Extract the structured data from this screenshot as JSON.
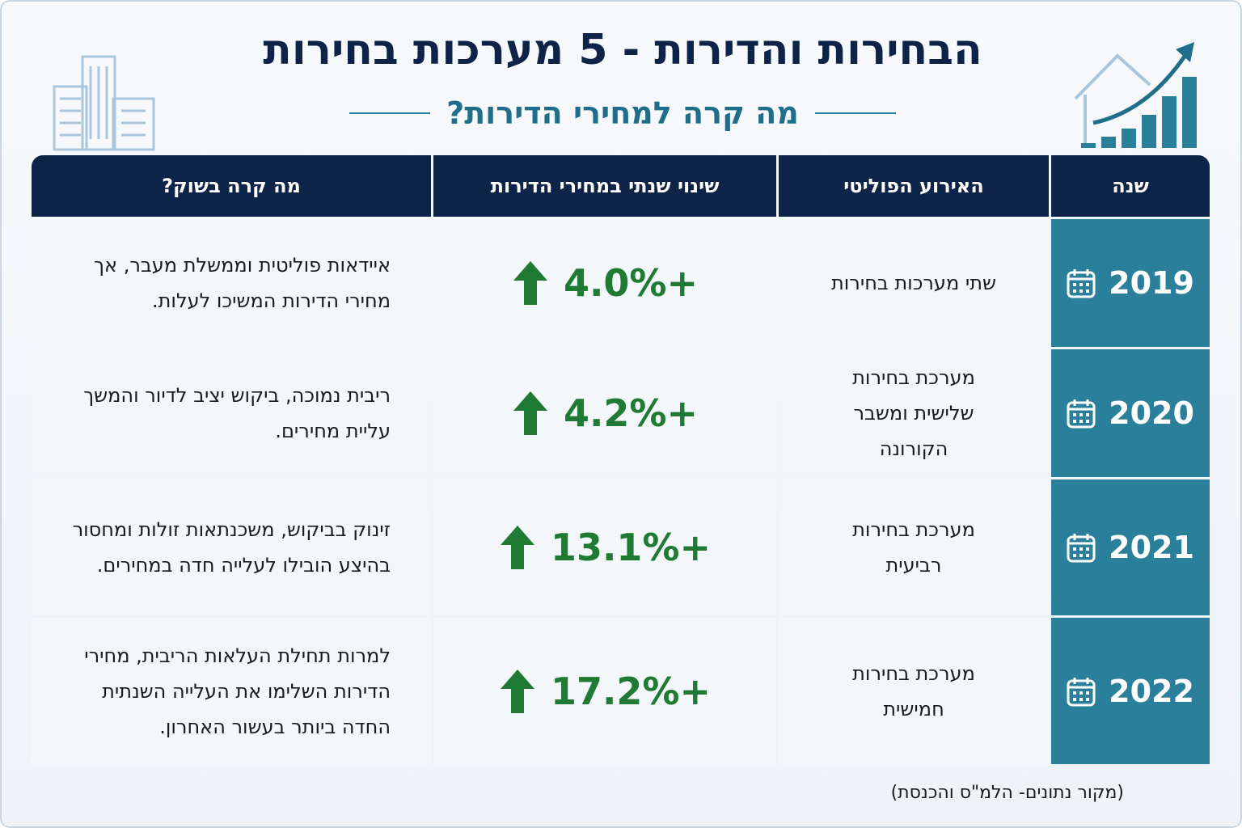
{
  "header": {
    "title": "הבחירות והדירות - 5 מערכות בחירות",
    "subtitle": "מה קרה למחירי הדירות?"
  },
  "table": {
    "columns": [
      "שנה",
      "האירוע הפוליטי",
      "שינוי שנתי במחירי הדירות",
      "מה קרה בשוק?"
    ],
    "rows": [
      [
        "2019",
        "שתי מערכות בחירות",
        "+4.0%",
        "איידאות פוליטית וממשלת מעבר, אך מחירי הדירות המשיכו לעלות."
      ],
      [
        "2020",
        "מערכת בחירות שלישית ומשבר הקורונה",
        "+4.2%",
        "ריבית נמוכה, ביקוש יציב לדיור והמשך עליית מחירים."
      ],
      [
        "2021",
        "מערכת בחירות רביעית",
        "+13.1%",
        "זינוק בביקוש, משכנתאות זולות ומחסור בהיצע הובילו לעלייה חדה במחירים."
      ],
      [
        "2022",
        "מערכת בחירות חמישית",
        "+17.2%",
        "למרות תחילת העלאות הריבית, מחירי הדירות השלימו את העלייה השנתית החדה ביותר בעשור האחרון."
      ]
    ]
  },
  "footer": {
    "source": "(מקור נתונים- הלמ\"ס והכנסת)"
  }
}
